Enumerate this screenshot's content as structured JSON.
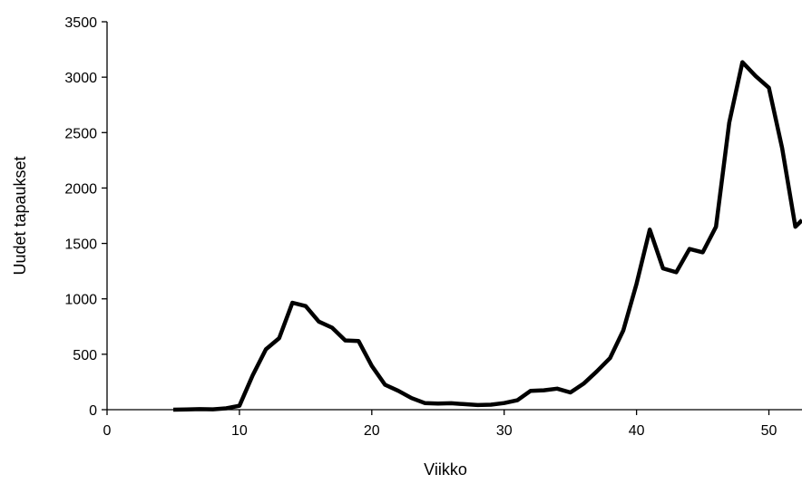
{
  "chart_data": {
    "type": "line",
    "title": "",
    "xlabel": "Viikko",
    "ylabel": "Uudet tapaukset",
    "xlim": [
      0,
      52.5
    ],
    "ylim": [
      0,
      3500
    ],
    "xticks": [
      0,
      10,
      20,
      30,
      40,
      50
    ],
    "yticks": [
      0,
      500,
      1000,
      1500,
      2000,
      2500,
      3000,
      3500
    ],
    "grid": false,
    "legend": "none",
    "series": [
      {
        "color": "#000000",
        "x": [
          5,
          6,
          7,
          8,
          9,
          10,
          11,
          12,
          13,
          14,
          15,
          16,
          17,
          18,
          19,
          20,
          21,
          22,
          23,
          24,
          25,
          26,
          27,
          28,
          29,
          30,
          31,
          32,
          33,
          34,
          35,
          36,
          37,
          38,
          39,
          40,
          41,
          42,
          43,
          44,
          45,
          46,
          47,
          48,
          49,
          50,
          51,
          52,
          52.5
        ],
        "y": [
          0,
          2,
          5,
          3,
          12,
          35,
          310,
          545,
          645,
          965,
          935,
          795,
          740,
          625,
          620,
          395,
          225,
          170,
          105,
          60,
          55,
          58,
          50,
          42,
          45,
          60,
          85,
          170,
          175,
          190,
          155,
          235,
          345,
          465,
          715,
          1135,
          1625,
          1275,
          1240,
          1450,
          1420,
          1650,
          2590,
          3135,
          3010,
          2905,
          2360,
          1650,
          1710
        ]
      }
    ]
  }
}
